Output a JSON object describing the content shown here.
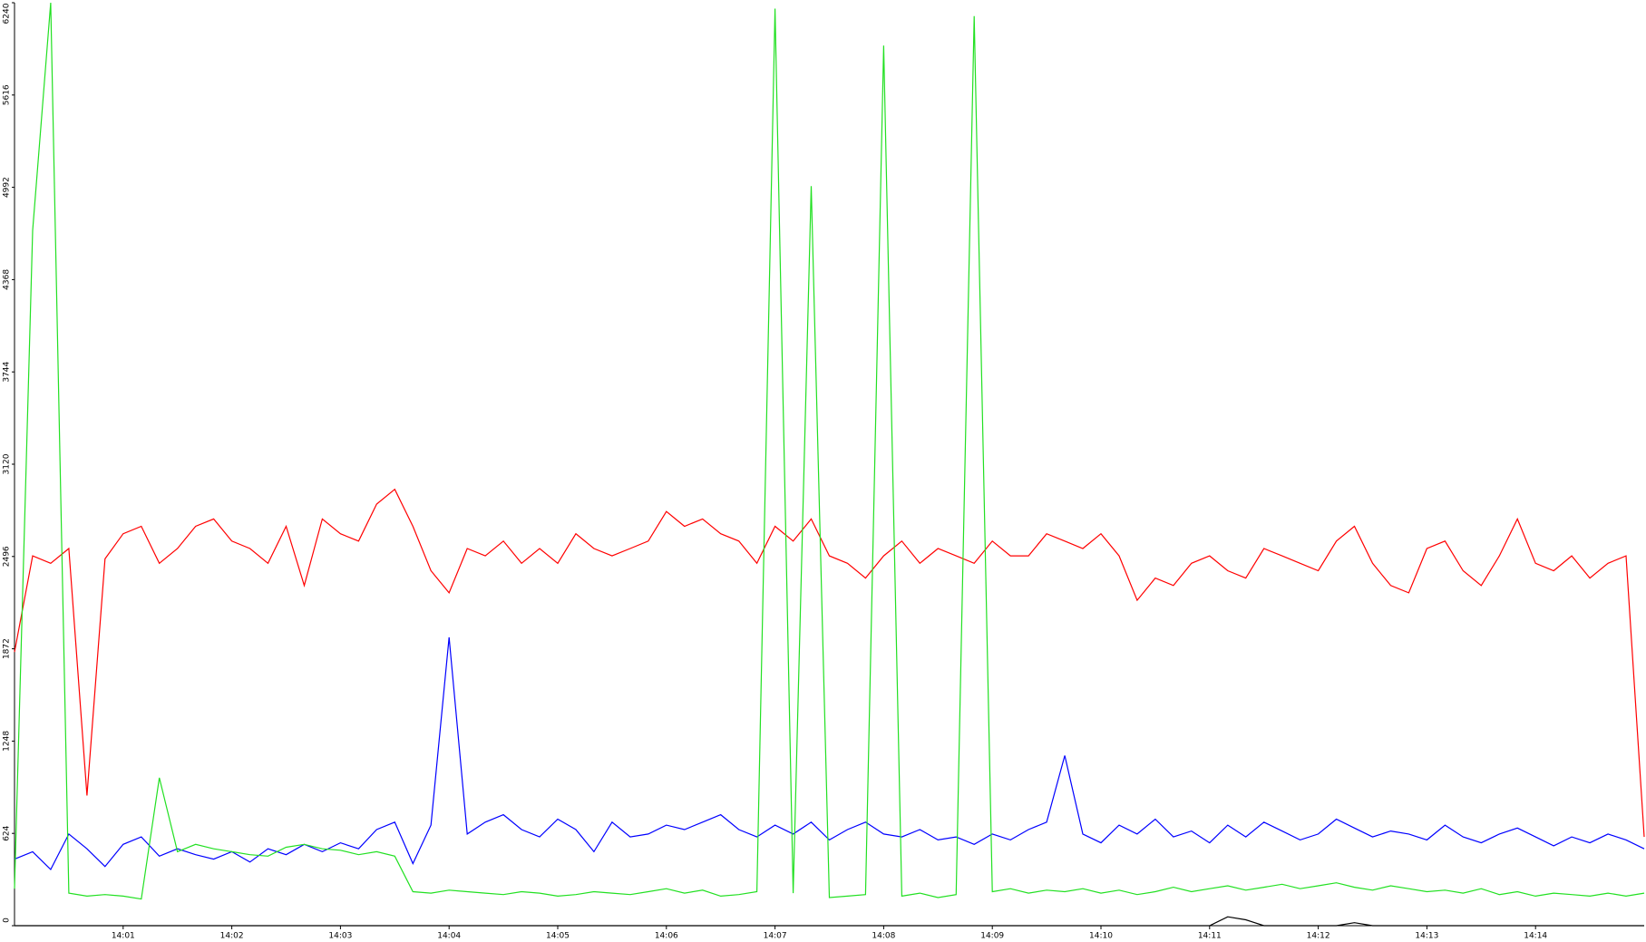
{
  "chart_data": {
    "type": "line",
    "x": [
      0,
      10,
      20,
      30,
      40,
      50,
      60,
      70,
      80,
      90,
      100,
      110,
      120,
      130,
      140,
      150,
      160,
      170,
      180,
      190,
      200,
      210,
      220,
      230,
      240,
      250,
      260,
      270,
      280,
      290,
      300,
      310,
      320,
      330,
      340,
      350,
      360,
      370,
      380,
      390,
      400,
      410,
      420,
      430,
      440,
      450,
      460,
      470,
      480,
      490,
      500,
      510,
      520,
      530,
      540,
      550,
      560,
      570,
      580,
      590,
      600,
      610,
      620,
      630,
      640,
      650,
      660,
      670,
      680,
      690,
      700,
      710,
      720,
      730,
      740,
      750,
      760,
      770,
      780,
      790,
      800,
      810,
      820,
      830,
      840,
      850,
      860,
      870,
      880,
      890,
      900
    ],
    "xlim": [
      0,
      900
    ],
    "xticks": [
      {
        "value": 60,
        "label": "14:01"
      },
      {
        "value": 120,
        "label": "14:02"
      },
      {
        "value": 180,
        "label": "14:03"
      },
      {
        "value": 240,
        "label": "14:04"
      },
      {
        "value": 300,
        "label": "14:05"
      },
      {
        "value": 360,
        "label": "14:06"
      },
      {
        "value": 420,
        "label": "14:07"
      },
      {
        "value": 480,
        "label": "14:08"
      },
      {
        "value": 540,
        "label": "14:09"
      },
      {
        "value": 600,
        "label": "14:10"
      },
      {
        "value": 660,
        "label": "14:11"
      },
      {
        "value": 720,
        "label": "14:12"
      },
      {
        "value": 780,
        "label": "14:13"
      },
      {
        "value": 840,
        "label": "14:14"
      }
    ],
    "ylim": [
      0,
      6240
    ],
    "yticks": [
      0,
      624,
      1248,
      1872,
      2496,
      3120,
      3744,
      4368,
      4992,
      5616,
      6240
    ],
    "grid": false,
    "series": [
      {
        "color": "#ff0000",
        "values": [
          1850,
          2500,
          2450,
          2550,
          880,
          2480,
          2650,
          2700,
          2450,
          2550,
          2700,
          2750,
          2600,
          2550,
          2450,
          2700,
          2300,
          2750,
          2650,
          2600,
          2850,
          2950,
          2700,
          2400,
          2250,
          2550,
          2500,
          2600,
          2450,
          2550,
          2450,
          2650,
          2550,
          2500,
          2550,
          2600,
          2800,
          2700,
          2750,
          2650,
          2600,
          2450,
          2700,
          2600,
          2750,
          2500,
          2450,
          2350,
          2500,
          2600,
          2450,
          2550,
          2500,
          2450,
          2600,
          2500,
          2500,
          2650,
          2600,
          2550,
          2650,
          2500,
          2200,
          2350,
          2300,
          2450,
          2500,
          2400,
          2350,
          2550,
          2500,
          2450,
          2400,
          2600,
          2700,
          2450,
          2300,
          2250,
          2550,
          2600,
          2400,
          2300,
          2500,
          2750,
          2450,
          2400,
          2500,
          2350,
          2450,
          2500,
          600
        ]
      },
      {
        "color": "#0000ff",
        "values": [
          450,
          500,
          380,
          620,
          520,
          400,
          550,
          600,
          470,
          520,
          480,
          450,
          500,
          430,
          520,
          480,
          550,
          500,
          560,
          520,
          650,
          700,
          420,
          680,
          1950,
          620,
          700,
          750,
          650,
          600,
          720,
          650,
          500,
          700,
          600,
          620,
          680,
          650,
          700,
          750,
          650,
          600,
          680,
          620,
          700,
          580,
          650,
          700,
          620,
          600,
          650,
          580,
          600,
          550,
          620,
          580,
          650,
          700,
          1150,
          620,
          560,
          680,
          620,
          720,
          600,
          640,
          560,
          680,
          600,
          700,
          640,
          580,
          620,
          720,
          660,
          600,
          640,
          620,
          580,
          680,
          600,
          560,
          620,
          660,
          600,
          540,
          600,
          560,
          620,
          580,
          520
        ]
      },
      {
        "color": "#22e022",
        "values": [
          250,
          4700,
          6240,
          220,
          200,
          210,
          200,
          180,
          1000,
          500,
          550,
          520,
          500,
          480,
          470,
          530,
          550,
          520,
          510,
          480,
          500,
          470,
          230,
          220,
          240,
          230,
          220,
          210,
          230,
          220,
          200,
          210,
          230,
          220,
          210,
          230,
          250,
          220,
          240,
          200,
          210,
          230,
          6200,
          220,
          5000,
          190,
          200,
          210,
          5950,
          200,
          220,
          190,
          210,
          6150,
          230,
          250,
          220,
          240,
          230,
          250,
          220,
          240,
          210,
          230,
          260,
          230,
          250,
          270,
          240,
          260,
          280,
          250,
          270,
          290,
          260,
          240,
          270,
          250,
          230,
          240,
          220,
          250,
          210,
          230,
          200,
          220,
          210,
          200,
          220,
          200,
          220
        ]
      },
      {
        "color": "#000000",
        "values": [
          0,
          0,
          0,
          0,
          0,
          0,
          0,
          0,
          0,
          0,
          0,
          0,
          0,
          0,
          0,
          0,
          0,
          0,
          0,
          0,
          0,
          0,
          0,
          0,
          0,
          0,
          0,
          0,
          0,
          0,
          0,
          0,
          0,
          0,
          0,
          0,
          0,
          0,
          0,
          0,
          0,
          0,
          0,
          0,
          0,
          0,
          0,
          0,
          0,
          0,
          0,
          0,
          0,
          0,
          0,
          0,
          0,
          0,
          0,
          0,
          0,
          0,
          0,
          0,
          0,
          0,
          0,
          60,
          40,
          0,
          0,
          0,
          0,
          0,
          20,
          0,
          0,
          0,
          0,
          0,
          0,
          0,
          0,
          0,
          0,
          0,
          0,
          0,
          0,
          0,
          0
        ]
      }
    ]
  }
}
